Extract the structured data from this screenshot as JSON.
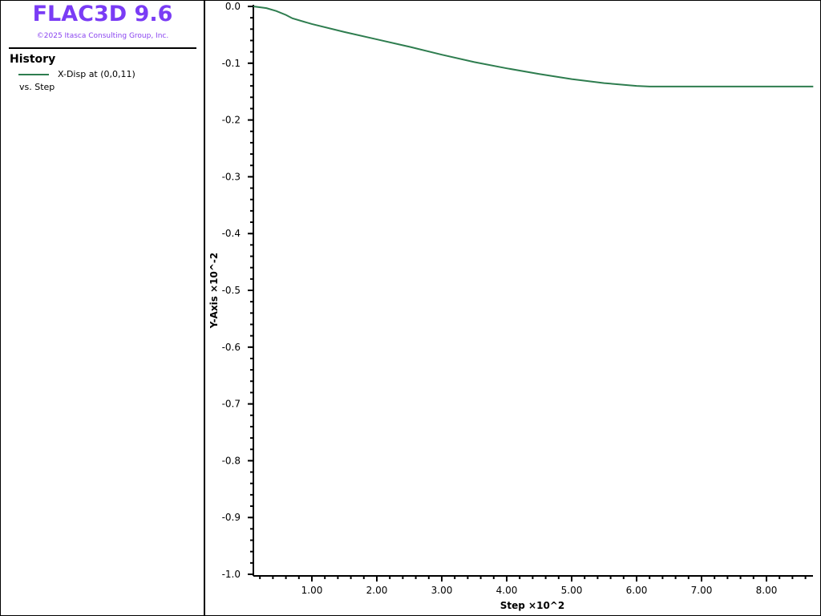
{
  "app": {
    "title": "FLAC3D 9.6",
    "copyright": "©2025 Itasca Consulting Group, Inc."
  },
  "legend": {
    "title": "History",
    "series_label": "X-Disp at (0,0,11)",
    "vs_label": "vs. Step"
  },
  "chart_data": {
    "type": "line",
    "xlabel": "Step ×10^2",
    "ylabel": "Y-Axis ×10^-2",
    "xlim": [
      0.1,
      8.72
    ],
    "ylim": [
      -1.0,
      0.0
    ],
    "grid": false,
    "x_ticks": [
      "1.00",
      "2.00",
      "3.00",
      "4.00",
      "5.00",
      "6.00",
      "7.00",
      "8.00"
    ],
    "y_ticks": [
      "0.0",
      "-0.1",
      "-0.2",
      "-0.3",
      "-0.4",
      "-0.5",
      "-0.6",
      "-0.7",
      "-0.8",
      "-0.9",
      "-1.0"
    ],
    "series": [
      {
        "name": "X-Disp at (0,0,11)",
        "color": "#2e7d4f",
        "x": [
          0.1,
          0.3,
          0.45,
          0.6,
          0.7,
          1.0,
          1.5,
          2.0,
          2.5,
          3.0,
          3.5,
          4.0,
          4.5,
          5.0,
          5.5,
          6.0,
          6.2,
          7.0,
          8.0,
          8.72
        ],
        "y": [
          0.0,
          -0.003,
          -0.008,
          -0.015,
          -0.021,
          -0.031,
          -0.045,
          -0.058,
          -0.071,
          -0.085,
          -0.098,
          -0.109,
          -0.119,
          -0.128,
          -0.135,
          -0.14,
          -0.141,
          -0.141,
          -0.141,
          -0.141
        ]
      }
    ]
  }
}
